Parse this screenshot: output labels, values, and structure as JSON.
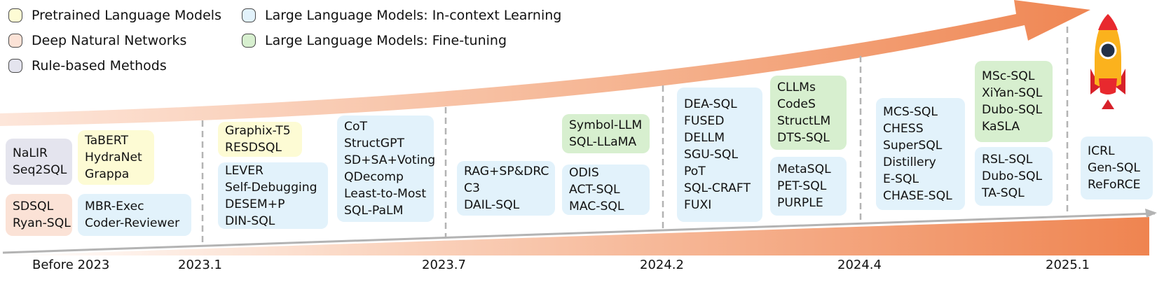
{
  "colors": {
    "yellow": "#fdfbd4",
    "peach": "#fbe2d6",
    "gray": "#e4e4ee",
    "blue": "#e2f2fb",
    "green": "#d7efcf",
    "arrow_orange": "#f08a55",
    "axis_gray": "#b3b3b3"
  },
  "legend": [
    {
      "label": "Pretrained Language Models",
      "color": "yellow"
    },
    {
      "label": "Deep Natural Networks",
      "color": "peach"
    },
    {
      "label": "Rule-based Methods",
      "color": "gray"
    },
    {
      "label": "Large Language Models: In-context Learning",
      "color": "blue"
    },
    {
      "label": "Large Language Models: Fine-tuning",
      "color": "green"
    }
  ],
  "timeline": [
    "Before 2023",
    "2023.1",
    "2023.7",
    "2024.2",
    "2024.4",
    "2025.1"
  ],
  "groups": [
    {
      "category": "gray",
      "methods": [
        "NaLIR",
        "Seq2SQL"
      ]
    },
    {
      "category": "peach",
      "methods": [
        "SDSQL",
        "Ryan-SQL"
      ]
    },
    {
      "category": "yellow",
      "methods": [
        "TaBERT",
        "HydraNet",
        "Grappa"
      ]
    },
    {
      "category": "blue",
      "methods": [
        "MBR-Exec",
        "Coder-Reviewer"
      ]
    },
    {
      "category": "yellow",
      "methods": [
        "Graphix-T5",
        "RESDSQL"
      ]
    },
    {
      "category": "blue",
      "methods": [
        "LEVER",
        "Self-Debugging",
        "DESEM+P",
        "DIN-SQL"
      ]
    },
    {
      "category": "blue",
      "methods": [
        "CoT",
        "StructGPT",
        "SD+SA+Voting",
        "QDecomp",
        "Least-to-Most",
        "SQL-PaLM"
      ]
    },
    {
      "category": "blue",
      "methods": [
        "RAG+SP&DRC",
        "C3",
        "DAIL-SQL"
      ]
    },
    {
      "category": "green",
      "methods": [
        "Symbol-LLM",
        "SQL-LLaMA"
      ]
    },
    {
      "category": "blue",
      "methods": [
        "ODIS",
        "ACT-SQL",
        "MAC-SQL"
      ]
    },
    {
      "category": "blue",
      "methods": [
        "DEA-SQL",
        "FUSED",
        "DELLM",
        "SGU-SQL",
        "PoT",
        "SQL-CRAFT",
        "FUXI"
      ]
    },
    {
      "category": "green",
      "methods": [
        "CLLMs",
        "CodeS",
        "StructLM",
        "DTS-SQL"
      ]
    },
    {
      "category": "blue",
      "methods": [
        "MetaSQL",
        "PET-SQL",
        "PURPLE"
      ]
    },
    {
      "category": "blue",
      "methods": [
        "MCS-SQL",
        "CHESS",
        "SuperSQL",
        "Distillery",
        "E-SQL",
        "CHASE-SQL"
      ]
    },
    {
      "category": "green",
      "methods": [
        "MSc-SQL",
        "XiYan-SQL",
        "Dubo-SQL",
        "KaSLA"
      ]
    },
    {
      "category": "blue",
      "methods": [
        "RSL-SQL",
        "Dubo-SQL",
        "TA-SQL"
      ]
    },
    {
      "category": "blue",
      "methods": [
        "ICRL",
        "Gen-SQL",
        "ReFoRCE"
      ]
    }
  ]
}
